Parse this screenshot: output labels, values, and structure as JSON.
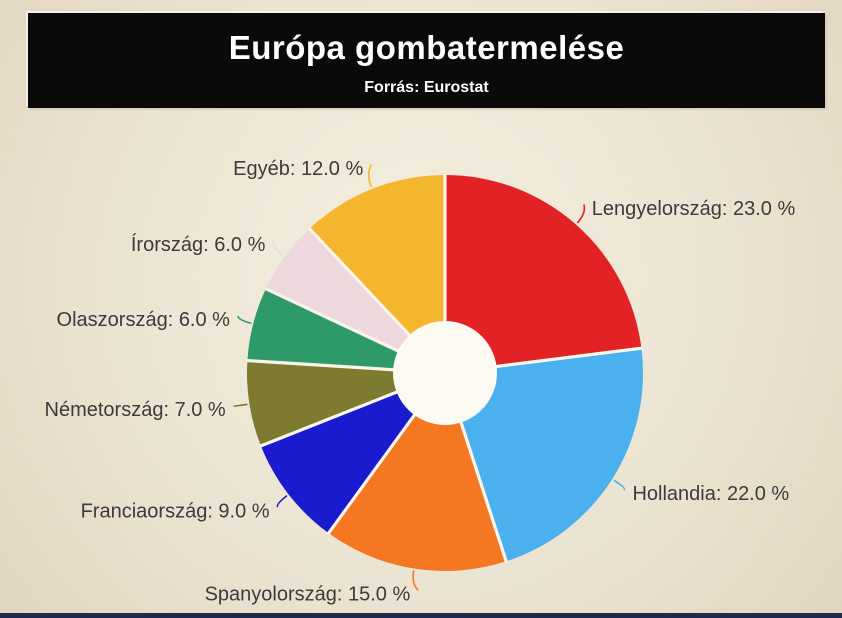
{
  "header": {
    "title": "Európa gombatermelése",
    "subtitle": "Forrás: Eurostat"
  },
  "chart_data": {
    "type": "pie",
    "title": "Európa gombatermelése",
    "subtitle": "Forrás: Eurostat",
    "unit": "%",
    "donut": true,
    "start_angle_deg": 0,
    "direction": "clockwise",
    "legend": "none",
    "slices": [
      {
        "label": "Lengyelország",
        "value": 23.0,
        "display": "Lengyelország: 23.0 %",
        "color": "#e32225"
      },
      {
        "label": "Hollandia",
        "value": 22.0,
        "display": "Hollandia: 22.0 %",
        "color": "#4bb0ee"
      },
      {
        "label": "Spanyolország",
        "value": 15.0,
        "display": "Spanyolország: 15.0 %",
        "color": "#f57722"
      },
      {
        "label": "Franciaország",
        "value": 9.0,
        "display": "Franciaország: 9.0 %",
        "color": "#1a1bce"
      },
      {
        "label": "Németország",
        "value": 7.0,
        "display": "Németország: 7.0 %",
        "color": "#7e7a2f"
      },
      {
        "label": "Olaszország",
        "value": 6.0,
        "display": "Olaszország: 6.0 %",
        "color": "#2e9a68"
      },
      {
        "label": "Írország",
        "value": 6.0,
        "display": "Írország: 6.0 %",
        "color": "#edd8de"
      },
      {
        "label": "Egyéb",
        "value": 12.0,
        "display": "Egyéb: 12.0 %",
        "color": "#f5b62f"
      }
    ]
  },
  "colors": {
    "background_center": "#f4efe0",
    "background_edge": "#e0d5c0",
    "header_bg": "#0b0a08",
    "header_text": "#ffffff",
    "label_text": "#3b3b3b",
    "gap_line": "#f8f5ec",
    "hole_fill": "#fcfaf2",
    "bottom_bar": "#1d2c4d"
  }
}
